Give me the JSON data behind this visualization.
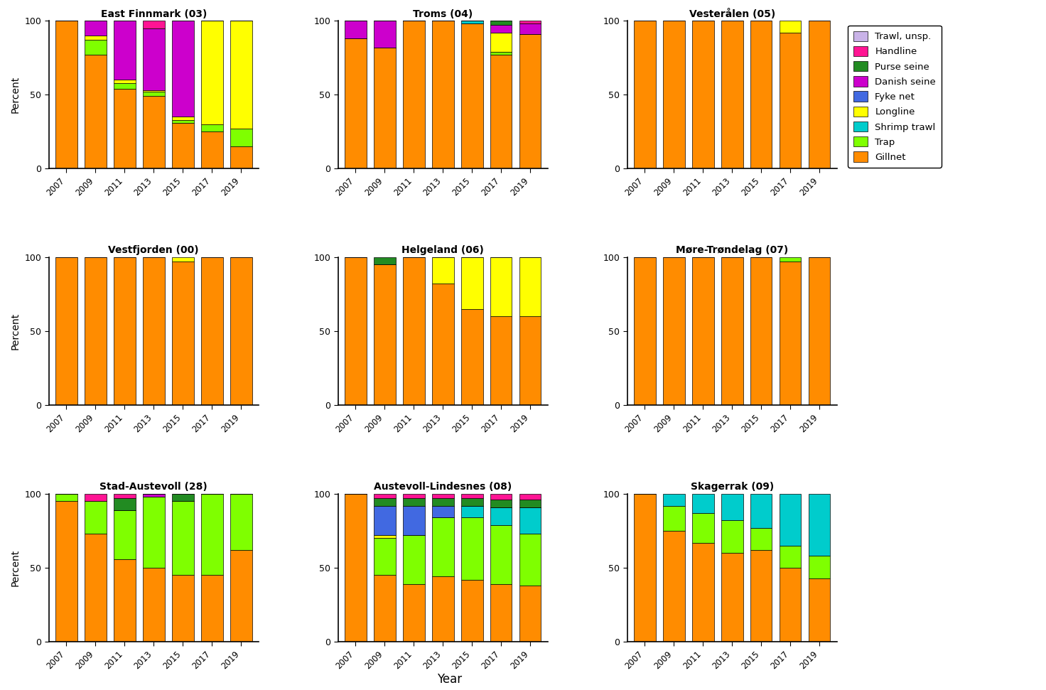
{
  "years": [
    2007,
    2009,
    2011,
    2013,
    2015,
    2017,
    2019
  ],
  "gear_names": [
    "Trawl, unsp.",
    "Handline",
    "Purse seine",
    "Danish seine",
    "Fyke net",
    "Longline",
    "Shrimp trawl",
    "Trap",
    "Gillnet"
  ],
  "gear_colors": [
    "#c9b3e8",
    "#ff1493",
    "#228b22",
    "#cc00cc",
    "#4169e1",
    "#ffff00",
    "#00cccc",
    "#7fff00",
    "#ff8c00"
  ],
  "panels": [
    {
      "title": "East Finnmark (03)",
      "data": {
        "Trawl, unsp.": [
          0,
          0,
          0,
          0,
          0,
          0,
          0
        ],
        "Handline": [
          0,
          0,
          0,
          5,
          0,
          0,
          0
        ],
        "Purse seine": [
          0,
          0,
          0,
          0,
          0,
          0,
          0
        ],
        "Danish seine": [
          0,
          10,
          40,
          42,
          65,
          0,
          0
        ],
        "Fyke net": [
          0,
          0,
          0,
          0,
          0,
          0,
          0
        ],
        "Longline": [
          0,
          3,
          2,
          1,
          2,
          70,
          73
        ],
        "Shrimp trawl": [
          0,
          0,
          0,
          0,
          0,
          0,
          0
        ],
        "Trap": [
          0,
          10,
          4,
          3,
          2,
          5,
          12
        ],
        "Gillnet": [
          100,
          77,
          54,
          49,
          31,
          25,
          15
        ]
      }
    },
    {
      "title": "Troms (04)",
      "data": {
        "Trawl, unsp.": [
          0,
          0,
          0,
          0,
          0,
          0,
          0
        ],
        "Handline": [
          0,
          0,
          0,
          0,
          0,
          0,
          2
        ],
        "Purse seine": [
          0,
          0,
          0,
          0,
          0,
          3,
          0
        ],
        "Danish seine": [
          12,
          18,
          0,
          0,
          0,
          5,
          7
        ],
        "Fyke net": [
          0,
          0,
          0,
          0,
          0,
          0,
          0
        ],
        "Longline": [
          0,
          0,
          0,
          0,
          0,
          13,
          0
        ],
        "Shrimp trawl": [
          0,
          0,
          0,
          0,
          2,
          0,
          0
        ],
        "Trap": [
          0,
          0,
          0,
          0,
          0,
          2,
          0
        ],
        "Gillnet": [
          88,
          82,
          100,
          100,
          98,
          77,
          91
        ]
      }
    },
    {
      "title": "Vesterålen (05)",
      "data": {
        "Trawl, unsp.": [
          0,
          0,
          0,
          0,
          0,
          0,
          0
        ],
        "Handline": [
          0,
          0,
          0,
          0,
          0,
          0,
          0
        ],
        "Purse seine": [
          0,
          0,
          0,
          0,
          0,
          0,
          0
        ],
        "Danish seine": [
          0,
          0,
          0,
          0,
          0,
          0,
          0
        ],
        "Fyke net": [
          0,
          0,
          0,
          0,
          0,
          0,
          0
        ],
        "Longline": [
          0,
          0,
          0,
          0,
          0,
          8,
          0
        ],
        "Shrimp trawl": [
          0,
          0,
          0,
          0,
          0,
          0,
          0
        ],
        "Trap": [
          0,
          0,
          0,
          0,
          0,
          0,
          0
        ],
        "Gillnet": [
          100,
          100,
          100,
          100,
          100,
          92,
          100
        ]
      }
    },
    {
      "title": "Vestfjorden (00)",
      "data": {
        "Trawl, unsp.": [
          0,
          0,
          0,
          0,
          0,
          0,
          0
        ],
        "Handline": [
          0,
          0,
          0,
          0,
          0,
          0,
          0
        ],
        "Purse seine": [
          0,
          0,
          0,
          0,
          0,
          0,
          0
        ],
        "Danish seine": [
          0,
          0,
          0,
          0,
          0,
          0,
          0
        ],
        "Fyke net": [
          0,
          0,
          0,
          0,
          0,
          0,
          0
        ],
        "Longline": [
          0,
          0,
          0,
          0,
          3,
          0,
          0
        ],
        "Shrimp trawl": [
          0,
          0,
          0,
          0,
          0,
          0,
          0
        ],
        "Trap": [
          0,
          0,
          0,
          0,
          0,
          0,
          0
        ],
        "Gillnet": [
          100,
          100,
          100,
          100,
          97,
          100,
          100
        ]
      }
    },
    {
      "title": "Helgeland (06)",
      "data": {
        "Trawl, unsp.": [
          0,
          0,
          0,
          0,
          0,
          0,
          0
        ],
        "Handline": [
          0,
          0,
          0,
          0,
          0,
          0,
          0
        ],
        "Purse seine": [
          0,
          5,
          0,
          0,
          0,
          0,
          0
        ],
        "Danish seine": [
          0,
          0,
          0,
          0,
          0,
          0,
          0
        ],
        "Fyke net": [
          0,
          0,
          0,
          0,
          0,
          0,
          0
        ],
        "Longline": [
          0,
          0,
          0,
          18,
          35,
          40,
          40
        ],
        "Shrimp trawl": [
          0,
          0,
          0,
          0,
          0,
          0,
          0
        ],
        "Trap": [
          0,
          0,
          0,
          0,
          0,
          0,
          0
        ],
        "Gillnet": [
          100,
          95,
          100,
          82,
          65,
          60,
          60
        ]
      }
    },
    {
      "title": "Møre-Trøndelag (07)",
      "data": {
        "Trawl, unsp.": [
          0,
          0,
          0,
          0,
          0,
          0,
          0
        ],
        "Handline": [
          0,
          0,
          0,
          0,
          0,
          0,
          0
        ],
        "Purse seine": [
          0,
          0,
          0,
          0,
          0,
          0,
          0
        ],
        "Danish seine": [
          0,
          0,
          0,
          0,
          0,
          0,
          0
        ],
        "Fyke net": [
          0,
          0,
          0,
          0,
          0,
          0,
          0
        ],
        "Longline": [
          0,
          0,
          0,
          0,
          0,
          0,
          0
        ],
        "Shrimp trawl": [
          0,
          0,
          0,
          0,
          0,
          0,
          0
        ],
        "Trap": [
          0,
          0,
          0,
          0,
          0,
          3,
          0
        ],
        "Gillnet": [
          100,
          100,
          100,
          100,
          100,
          97,
          100
        ]
      }
    },
    {
      "title": "Stad-Austevoll (28)",
      "data": {
        "Trawl, unsp.": [
          0,
          0,
          0,
          0,
          0,
          0,
          0
        ],
        "Handline": [
          0,
          5,
          3,
          0,
          0,
          0,
          0
        ],
        "Purse seine": [
          0,
          0,
          8,
          0,
          5,
          0,
          0
        ],
        "Danish seine": [
          0,
          0,
          0,
          2,
          0,
          0,
          0
        ],
        "Fyke net": [
          0,
          0,
          0,
          0,
          0,
          0,
          0
        ],
        "Longline": [
          0,
          0,
          0,
          0,
          0,
          0,
          0
        ],
        "Shrimp trawl": [
          0,
          0,
          0,
          0,
          0,
          0,
          0
        ],
        "Trap": [
          5,
          22,
          33,
          48,
          50,
          55,
          38
        ],
        "Gillnet": [
          95,
          73,
          56,
          50,
          45,
          45,
          62
        ]
      }
    },
    {
      "title": "Austevoll-Lindesnes (08)",
      "data": {
        "Trawl, unsp.": [
          0,
          0,
          0,
          0,
          0,
          0,
          0
        ],
        "Handline": [
          0,
          3,
          3,
          3,
          3,
          4,
          4
        ],
        "Purse seine": [
          0,
          5,
          5,
          5,
          5,
          5,
          5
        ],
        "Danish seine": [
          0,
          0,
          0,
          0,
          0,
          0,
          0
        ],
        "Fyke net": [
          0,
          20,
          20,
          8,
          0,
          0,
          0
        ],
        "Longline": [
          0,
          2,
          0,
          0,
          0,
          0,
          0
        ],
        "Shrimp trawl": [
          0,
          0,
          0,
          0,
          8,
          12,
          18
        ],
        "Trap": [
          0,
          25,
          33,
          40,
          42,
          40,
          35
        ],
        "Gillnet": [
          100,
          45,
          39,
          44,
          42,
          39,
          38
        ]
      }
    },
    {
      "title": "Skagerrak (09)",
      "data": {
        "Trawl, unsp.": [
          0,
          0,
          0,
          0,
          0,
          0,
          0
        ],
        "Handline": [
          0,
          0,
          0,
          0,
          0,
          0,
          0
        ],
        "Purse seine": [
          0,
          0,
          0,
          0,
          0,
          0,
          0
        ],
        "Danish seine": [
          0,
          0,
          0,
          0,
          0,
          0,
          0
        ],
        "Fyke net": [
          0,
          0,
          0,
          0,
          0,
          0,
          0
        ],
        "Longline": [
          0,
          0,
          0,
          0,
          0,
          0,
          0
        ],
        "Shrimp trawl": [
          0,
          8,
          13,
          18,
          23,
          35,
          42
        ],
        "Trap": [
          0,
          17,
          20,
          22,
          15,
          15,
          15
        ],
        "Gillnet": [
          100,
          75,
          67,
          60,
          62,
          50,
          43
        ]
      }
    }
  ],
  "figsize": [
    14.72,
    9.71
  ],
  "background_color": "#ffffff",
  "legend_order": [
    "Trawl, unsp.",
    "Handline",
    "Purse seine",
    "Danish seine",
    "Fyke net",
    "Longline",
    "Shrimp trawl",
    "Trap",
    "Gillnet"
  ]
}
